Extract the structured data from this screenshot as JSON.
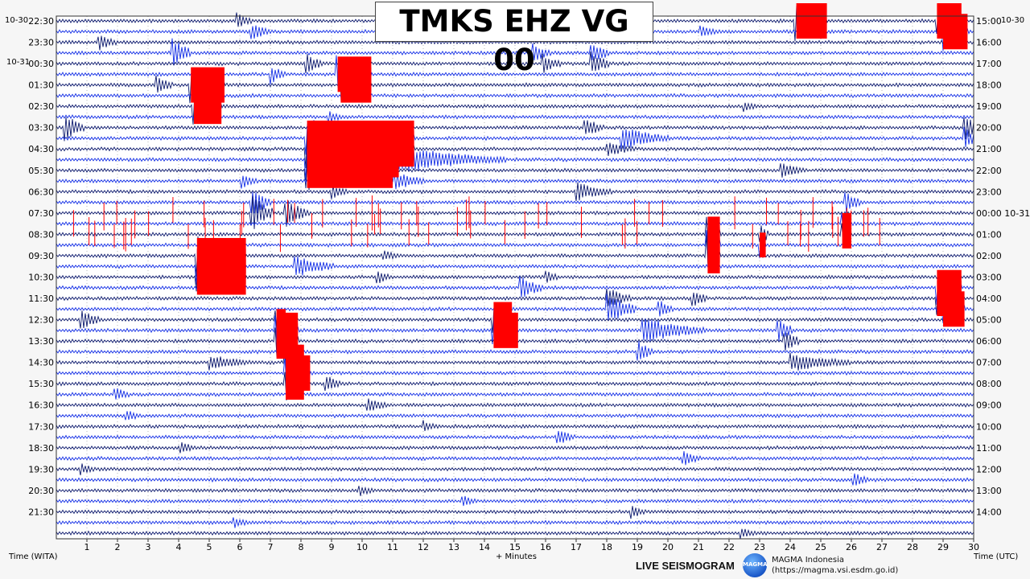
{
  "title": "TMKS EHZ VG 00",
  "dates": {
    "left_start": "10-30",
    "left_change": "10-31",
    "right_start": "10-30"
  },
  "footer": {
    "left_axis_label": "Time (WITA)",
    "x_axis_label": "+ Minutes",
    "right_axis_label": "Time (UTC)",
    "live_label": "LIVE SEISMOGRAM",
    "logo_text": "MAGMA",
    "org_name": "MAGMA Indonesia",
    "org_url": "(https://magma.vsi.esdm.go.id)"
  },
  "colors": {
    "trace_dark": "#0d1a6e",
    "trace_blue": "#1530e6",
    "clipped": "#ff0000",
    "background": "#ffffff",
    "grid": "#888888"
  },
  "chart_data": {
    "type": "line",
    "title": "TMKS EHZ VG 00",
    "xlabel": "+ Minutes",
    "ylabel_left": "Time (WITA)",
    "ylabel_right": "Time (UTC)",
    "xlim": [
      0,
      30
    ],
    "x_ticks": [
      1,
      2,
      3,
      4,
      5,
      6,
      7,
      8,
      9,
      10,
      11,
      12,
      13,
      14,
      15,
      16,
      17,
      18,
      19,
      20,
      21,
      22,
      23,
      24,
      25,
      26,
      27,
      28,
      29,
      30
    ],
    "rows_per_hour": 2,
    "row_count": 49,
    "left_ticks": [
      "22:30",
      "23:30",
      "00:30",
      "01:30",
      "02:30",
      "03:30",
      "04:30",
      "05:30",
      "06:30",
      "07:30",
      "08:30",
      "09:30",
      "10:30",
      "11:30",
      "12:30",
      "13:30",
      "14:30",
      "15:30",
      "16:30",
      "17:30",
      "18:30",
      "19:30",
      "20:30",
      "21:30"
    ],
    "right_ticks": [
      "15:00",
      "16:00",
      "17:00",
      "18:00",
      "19:00",
      "20:00",
      "21:00",
      "22:00",
      "23:00",
      "00:00 10-31",
      "01:00",
      "02:00",
      "03:00",
      "04:00",
      "05:00",
      "06:00",
      "07:00",
      "08:00",
      "09:00",
      "10:00",
      "11:00",
      "12:00",
      "13:00",
      "14:00"
    ],
    "events": [
      {
        "row": 0,
        "minute": 24.2,
        "amp": 1.0,
        "clip": true,
        "dur": 1.0
      },
      {
        "row": 0,
        "minute": 28.8,
        "amp": 1.0,
        "clip": true,
        "dur": 0.8
      },
      {
        "row": 0,
        "minute": 5.9,
        "amp": 0.4,
        "clip": false,
        "dur": 0.5
      },
      {
        "row": 1,
        "minute": 6.4,
        "amp": 0.45,
        "clip": false,
        "dur": 0.6
      },
      {
        "row": 1,
        "minute": 21.1,
        "amp": 0.3,
        "clip": false,
        "dur": 0.6
      },
      {
        "row": 1,
        "minute": 29.0,
        "amp": 1.0,
        "clip": true,
        "dur": 0.8
      },
      {
        "row": 2,
        "minute": 1.4,
        "amp": 0.4,
        "clip": false,
        "dur": 0.6
      },
      {
        "row": 3,
        "minute": 3.8,
        "amp": 0.8,
        "clip": false,
        "dur": 0.6
      },
      {
        "row": 3,
        "minute": 15.6,
        "amp": 0.5,
        "clip": false,
        "dur": 0.6
      },
      {
        "row": 3,
        "minute": 17.5,
        "amp": 0.6,
        "clip": false,
        "dur": 0.6
      },
      {
        "row": 4,
        "minute": 8.2,
        "amp": 0.5,
        "clip": false,
        "dur": 0.5
      },
      {
        "row": 4,
        "minute": 15.9,
        "amp": 0.5,
        "clip": false,
        "dur": 0.6
      },
      {
        "row": 4,
        "minute": 17.5,
        "amp": 0.6,
        "clip": false,
        "dur": 0.6
      },
      {
        "row": 5,
        "minute": 7.0,
        "amp": 0.5,
        "clip": false,
        "dur": 0.5
      },
      {
        "row": 5,
        "minute": 9.2,
        "amp": 1.0,
        "clip": true,
        "dur": 1.1
      },
      {
        "row": 6,
        "minute": 3.3,
        "amp": 0.5,
        "clip": false,
        "dur": 0.5
      },
      {
        "row": 6,
        "minute": 4.4,
        "amp": 1.0,
        "clip": true,
        "dur": 1.1
      },
      {
        "row": 6,
        "minute": 9.3,
        "amp": 1.0,
        "clip": true,
        "dur": 1.0
      },
      {
        "row": 8,
        "minute": 4.5,
        "amp": 1.0,
        "clip": true,
        "dur": 0.9
      },
      {
        "row": 8,
        "minute": 22.5,
        "amp": 0.3,
        "clip": false,
        "dur": 0.5
      },
      {
        "row": 9,
        "minute": 8.9,
        "amp": 0.35,
        "clip": false,
        "dur": 0.5
      },
      {
        "row": 10,
        "minute": 0.3,
        "amp": 0.7,
        "clip": false,
        "dur": 0.6
      },
      {
        "row": 10,
        "minute": 17.3,
        "amp": 0.5,
        "clip": false,
        "dur": 0.6
      },
      {
        "row": 10,
        "minute": 29.7,
        "amp": 0.7,
        "clip": false,
        "dur": 0.4
      },
      {
        "row": 11,
        "minute": 8.2,
        "amp": 1.0,
        "clip": true,
        "dur": 3.5
      },
      {
        "row": 11,
        "minute": 18.5,
        "amp": 0.6,
        "clip": false,
        "dur": 1.6
      },
      {
        "row": 11,
        "minute": 29.7,
        "amp": 0.6,
        "clip": false,
        "dur": 0.4
      },
      {
        "row": 12,
        "minute": 8.2,
        "amp": 1.0,
        "clip": true,
        "dur": 3.5
      },
      {
        "row": 12,
        "minute": 18.0,
        "amp": 0.4,
        "clip": false,
        "dur": 1.0
      },
      {
        "row": 13,
        "minute": 8.2,
        "amp": 1.0,
        "clip": true,
        "dur": 3.0
      },
      {
        "row": 13,
        "minute": 11.2,
        "amp": 0.7,
        "clip": false,
        "dur": 3.5
      },
      {
        "row": 14,
        "minute": 8.2,
        "amp": 1.0,
        "clip": true,
        "dur": 2.8
      },
      {
        "row": 14,
        "minute": 23.7,
        "amp": 0.4,
        "clip": false,
        "dur": 0.8
      },
      {
        "row": 15,
        "minute": 6.1,
        "amp": 0.4,
        "clip": false,
        "dur": 0.5
      },
      {
        "row": 15,
        "minute": 11.1,
        "amp": 0.5,
        "clip": false,
        "dur": 1.0
      },
      {
        "row": 16,
        "minute": 17.0,
        "amp": 0.5,
        "clip": false,
        "dur": 1.2
      },
      {
        "row": 16,
        "minute": 9.0,
        "amp": 0.4,
        "clip": false,
        "dur": 0.5
      },
      {
        "row": 17,
        "minute": 6.4,
        "amp": 0.8,
        "clip": false,
        "dur": 0.6
      },
      {
        "row": 17,
        "minute": 25.8,
        "amp": 0.6,
        "clip": false,
        "dur": 0.5
      },
      {
        "row": 18,
        "minute": 6.4,
        "amp": 0.9,
        "clip": false,
        "dur": 0.7
      },
      {
        "row": 18,
        "minute": 7.5,
        "amp": 0.7,
        "clip": false,
        "dur": 0.8
      },
      {
        "row": 19,
        "minute": 25.7,
        "amp": 0.6,
        "clip": true,
        "dur": 0.3
      },
      {
        "row": 20,
        "minute": 21.3,
        "amp": 1.0,
        "clip": true,
        "dur": 0.4
      },
      {
        "row": 20,
        "minute": 23.0,
        "amp": 0.6,
        "clip": false,
        "dur": 0.3
      },
      {
        "row": 20,
        "minute": 25.7,
        "amp": 0.8,
        "clip": true,
        "dur": 0.3
      },
      {
        "row": 21,
        "minute": 21.3,
        "amp": 1.0,
        "clip": true,
        "dur": 0.4
      },
      {
        "row": 21,
        "minute": 23.0,
        "amp": 0.7,
        "clip": true,
        "dur": 0.2
      },
      {
        "row": 22,
        "minute": 4.6,
        "amp": 1.0,
        "clip": true,
        "dur": 1.6
      },
      {
        "row": 22,
        "minute": 21.3,
        "amp": 1.0,
        "clip": true,
        "dur": 0.4
      },
      {
        "row": 22,
        "minute": 10.7,
        "amp": 0.3,
        "clip": false,
        "dur": 0.5
      },
      {
        "row": 23,
        "minute": 4.6,
        "amp": 1.0,
        "clip": true,
        "dur": 1.6
      },
      {
        "row": 23,
        "minute": 7.8,
        "amp": 0.6,
        "clip": false,
        "dur": 1.3
      },
      {
        "row": 24,
        "minute": 4.6,
        "amp": 1.0,
        "clip": true,
        "dur": 1.6
      },
      {
        "row": 24,
        "minute": 10.5,
        "amp": 0.4,
        "clip": false,
        "dur": 0.4
      },
      {
        "row": 24,
        "minute": 16.0,
        "amp": 0.4,
        "clip": false,
        "dur": 0.4
      },
      {
        "row": 25,
        "minute": 15.2,
        "amp": 0.6,
        "clip": false,
        "dur": 0.7
      },
      {
        "row": 25,
        "minute": 28.8,
        "amp": 1.0,
        "clip": true,
        "dur": 0.8
      },
      {
        "row": 26,
        "minute": 18.0,
        "amp": 0.6,
        "clip": false,
        "dur": 0.8
      },
      {
        "row": 26,
        "minute": 20.8,
        "amp": 0.5,
        "clip": false,
        "dur": 0.5
      },
      {
        "row": 26,
        "minute": 28.8,
        "amp": 1.0,
        "clip": true,
        "dur": 0.8
      },
      {
        "row": 27,
        "minute": 18.0,
        "amp": 0.8,
        "clip": false,
        "dur": 1.0
      },
      {
        "row": 27,
        "minute": 19.7,
        "amp": 0.5,
        "clip": false,
        "dur": 0.5
      },
      {
        "row": 27,
        "minute": 29.0,
        "amp": 1.0,
        "clip": true,
        "dur": 0.7
      },
      {
        "row": 28,
        "minute": 0.8,
        "amp": 0.6,
        "clip": false,
        "dur": 0.6
      },
      {
        "row": 28,
        "minute": 14.3,
        "amp": 1.0,
        "clip": true,
        "dur": 0.6
      },
      {
        "row": 28,
        "minute": 7.2,
        "amp": 0.6,
        "clip": true,
        "dur": 0.3
      },
      {
        "row": 29,
        "minute": 7.2,
        "amp": 1.0,
        "clip": true,
        "dur": 0.7
      },
      {
        "row": 29,
        "minute": 14.3,
        "amp": 1.0,
        "clip": true,
        "dur": 0.8
      },
      {
        "row": 29,
        "minute": 19.2,
        "amp": 0.7,
        "clip": false,
        "dur": 2.0
      },
      {
        "row": 29,
        "minute": 23.6,
        "amp": 0.6,
        "clip": false,
        "dur": 0.5
      },
      {
        "row": 30,
        "minute": 7.2,
        "amp": 1.0,
        "clip": true,
        "dur": 0.7
      },
      {
        "row": 30,
        "minute": 23.8,
        "amp": 0.6,
        "clip": false,
        "dur": 0.5
      },
      {
        "row": 31,
        "minute": 19.0,
        "amp": 0.6,
        "clip": false,
        "dur": 0.5
      },
      {
        "row": 32,
        "minute": 5.0,
        "amp": 0.4,
        "clip": false,
        "dur": 1.5
      },
      {
        "row": 32,
        "minute": 7.5,
        "amp": 1.0,
        "clip": true,
        "dur": 0.6
      },
      {
        "row": 32,
        "minute": 24.0,
        "amp": 0.5,
        "clip": false,
        "dur": 2.0
      },
      {
        "row": 33,
        "minute": 7.5,
        "amp": 1.0,
        "clip": true,
        "dur": 0.8
      },
      {
        "row": 34,
        "minute": 7.5,
        "amp": 0.9,
        "clip": true,
        "dur": 0.6
      },
      {
        "row": 34,
        "minute": 8.8,
        "amp": 0.5,
        "clip": false,
        "dur": 0.5
      },
      {
        "row": 35,
        "minute": 1.9,
        "amp": 0.4,
        "clip": false,
        "dur": 0.5
      },
      {
        "row": 36,
        "minute": 10.2,
        "amp": 0.4,
        "clip": false,
        "dur": 0.6
      },
      {
        "row": 37,
        "minute": 2.3,
        "amp": 0.3,
        "clip": false,
        "dur": 0.5
      },
      {
        "row": 38,
        "minute": 12.0,
        "amp": 0.3,
        "clip": false,
        "dur": 0.5
      },
      {
        "row": 39,
        "minute": 16.4,
        "amp": 0.4,
        "clip": false,
        "dur": 0.6
      },
      {
        "row": 40,
        "minute": 4.1,
        "amp": 0.3,
        "clip": false,
        "dur": 0.5
      },
      {
        "row": 41,
        "minute": 20.5,
        "amp": 0.4,
        "clip": false,
        "dur": 0.6
      },
      {
        "row": 42,
        "minute": 0.8,
        "amp": 0.3,
        "clip": false,
        "dur": 0.5
      },
      {
        "row": 43,
        "minute": 26.1,
        "amp": 0.35,
        "clip": false,
        "dur": 0.5
      },
      {
        "row": 44,
        "minute": 9.9,
        "amp": 0.3,
        "clip": false,
        "dur": 0.5
      },
      {
        "row": 45,
        "minute": 13.3,
        "amp": 0.3,
        "clip": false,
        "dur": 0.5
      },
      {
        "row": 46,
        "minute": 18.8,
        "amp": 0.35,
        "clip": false,
        "dur": 0.5
      },
      {
        "row": 47,
        "minute": 5.8,
        "amp": 0.3,
        "clip": false,
        "dur": 0.5
      },
      {
        "row": 48,
        "minute": 22.4,
        "amp": 0.3,
        "clip": false,
        "dur": 0.5
      }
    ]
  }
}
